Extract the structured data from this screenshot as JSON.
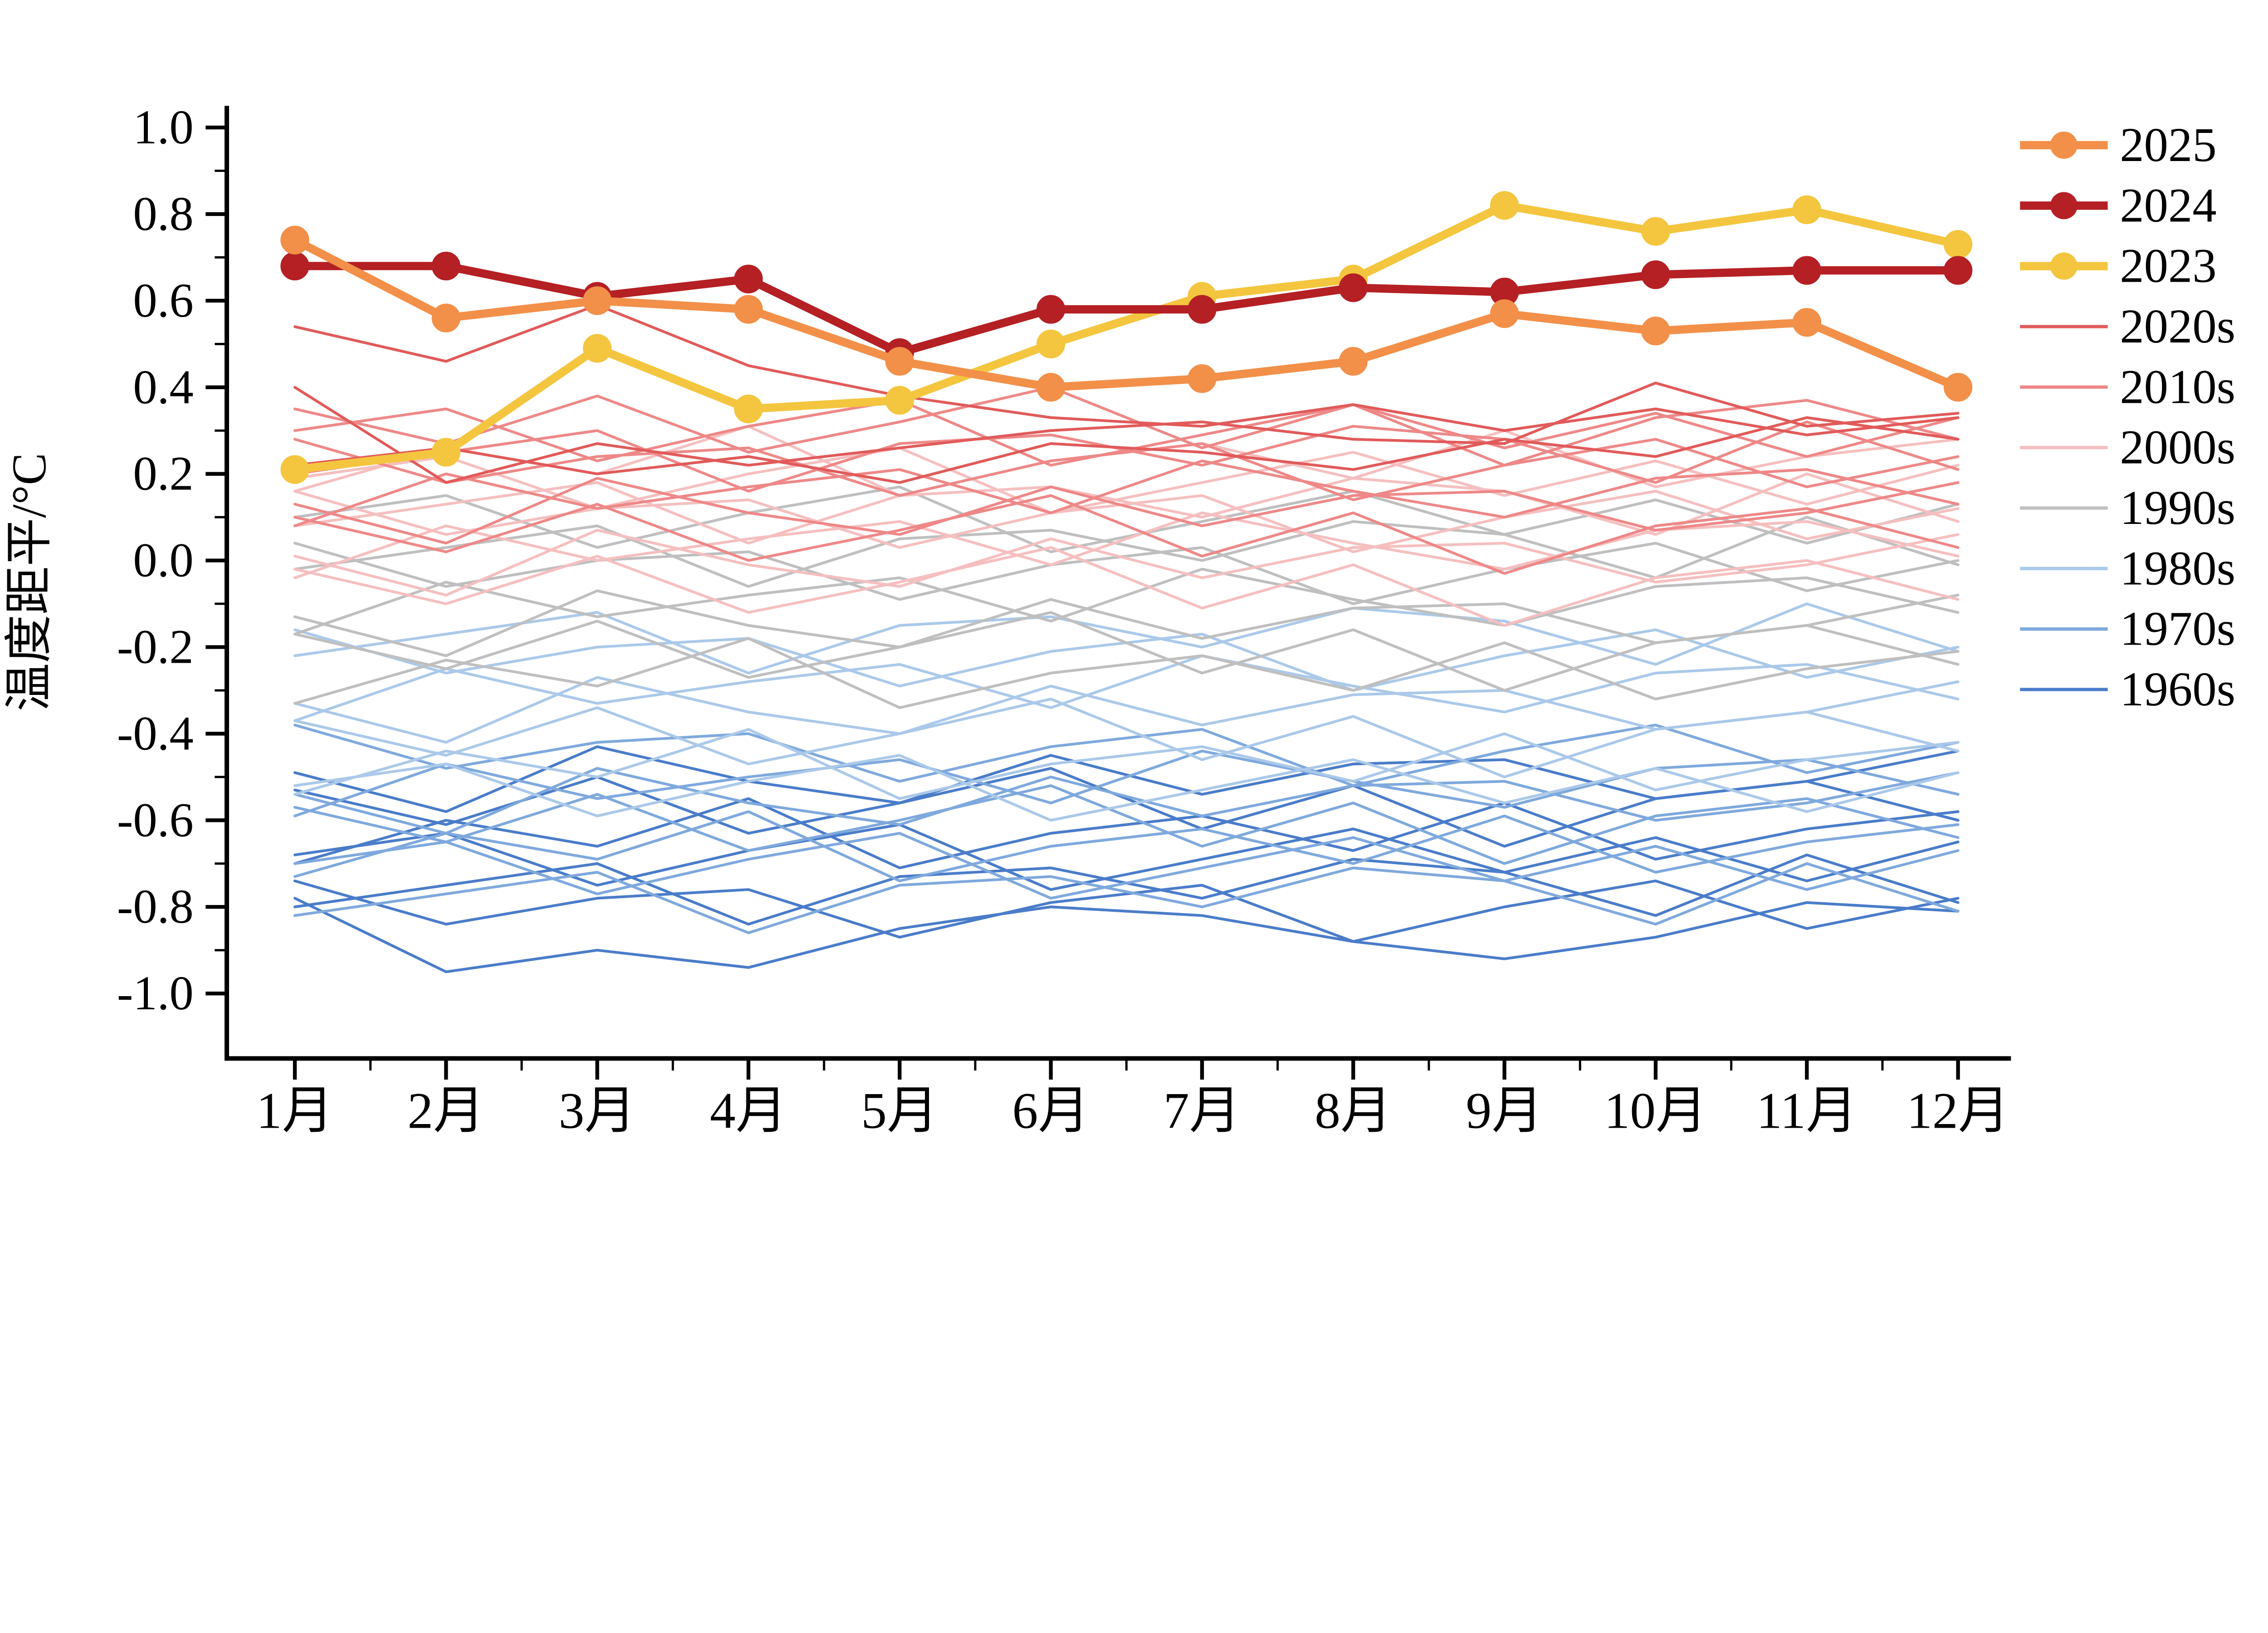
{
  "chart_data": {
    "type": "line",
    "title": "",
    "xlabel": "",
    "ylabel": "温度距平/°C",
    "categories": [
      "1月",
      "2月",
      "3月",
      "4月",
      "5月",
      "6月",
      "7月",
      "8月",
      "9月",
      "10月",
      "11月",
      "12月"
    ],
    "ylim": [
      -1.15,
      1.05
    ],
    "yticks": [
      -1.0,
      -0.8,
      -0.6,
      -0.4,
      -0.2,
      0.0,
      0.2,
      0.4,
      0.6,
      0.8,
      1.0
    ],
    "grid": false,
    "legend": {
      "position": "top-right",
      "items": [
        "2025",
        "2024",
        "2023",
        "2020s",
        "2010s",
        "2000s",
        "1990s",
        "1980s",
        "1970s",
        "1960s"
      ]
    },
    "highlight_series": [
      {
        "name": "2025",
        "color": "#F29049",
        "marker": true,
        "values": [
          0.74,
          0.56,
          0.6,
          0.58,
          0.46,
          0.4,
          0.42,
          0.46,
          0.57,
          0.53,
          0.55,
          0.4
        ]
      },
      {
        "name": "2024",
        "color": "#B42024",
        "marker": true,
        "values": [
          0.68,
          0.68,
          0.61,
          0.65,
          0.48,
          0.58,
          0.58,
          0.63,
          0.62,
          0.66,
          0.67,
          0.67
        ]
      },
      {
        "name": "2023",
        "color": "#F4C63F",
        "marker": true,
        "values": [
          0.21,
          0.25,
          0.49,
          0.35,
          0.37,
          0.5,
          0.61,
          0.65,
          0.82,
          0.76,
          0.81,
          0.73
        ]
      }
    ],
    "decade_series": [
      {
        "name": "2020s",
        "color": "#E15A5A",
        "lines": [
          [
            0.54,
            0.46,
            0.59,
            0.45,
            0.38,
            0.33,
            0.31,
            0.36,
            0.3,
            0.35,
            0.29,
            0.33
          ],
          [
            0.4,
            0.18,
            0.27,
            0.22,
            0.26,
            0.3,
            0.32,
            0.28,
            0.27,
            0.41,
            0.31,
            0.34
          ],
          [
            0.22,
            0.26,
            0.2,
            0.24,
            0.18,
            0.27,
            0.25,
            0.21,
            0.28,
            0.24,
            0.33,
            0.28
          ]
        ]
      },
      {
        "name": "2010s",
        "color": "#EE8888",
        "lines": [
          [
            0.35,
            0.27,
            0.38,
            0.25,
            0.32,
            0.4,
            0.26,
            0.36,
            0.22,
            0.33,
            0.37,
            0.28
          ],
          [
            0.3,
            0.35,
            0.23,
            0.31,
            0.37,
            0.22,
            0.29,
            0.36,
            0.26,
            0.34,
            0.24,
            0.33
          ],
          [
            0.2,
            0.25,
            0.3,
            0.16,
            0.27,
            0.29,
            0.22,
            0.31,
            0.28,
            0.18,
            0.32,
            0.21
          ],
          [
            0.28,
            0.18,
            0.24,
            0.26,
            0.15,
            0.23,
            0.27,
            0.14,
            0.22,
            0.28,
            0.17,
            0.24
          ],
          [
            0.08,
            0.2,
            0.12,
            0.17,
            0.21,
            0.11,
            0.23,
            0.16,
            0.1,
            0.19,
            0.21,
            0.13
          ],
          [
            0.13,
            0.04,
            0.19,
            0.11,
            0.06,
            0.17,
            0.08,
            0.15,
            0.16,
            0.07,
            0.11,
            0.18
          ],
          [
            0.1,
            0.02,
            0.13,
            0.0,
            0.07,
            0.15,
            0.01,
            0.11,
            -0.03,
            0.08,
            0.12,
            0.03
          ]
        ]
      },
      {
        "name": "2000s",
        "color": "#F5BFBF",
        "lines": [
          [
            0.16,
            0.26,
            0.2,
            0.31,
            0.15,
            0.23,
            0.27,
            0.19,
            0.3,
            0.17,
            0.24,
            0.28
          ],
          [
            0.19,
            0.24,
            0.12,
            0.2,
            0.26,
            0.11,
            0.18,
            0.25,
            0.15,
            0.23,
            0.13,
            0.22
          ],
          [
            0.08,
            0.13,
            0.18,
            0.04,
            0.15,
            0.17,
            0.1,
            0.19,
            0.16,
            0.06,
            0.2,
            0.09
          ],
          [
            0.16,
            0.06,
            0.12,
            0.14,
            0.03,
            0.11,
            0.15,
            0.02,
            0.1,
            0.16,
            0.05,
            0.12
          ],
          [
            -0.04,
            0.08,
            0.0,
            0.05,
            0.09,
            -0.01,
            0.11,
            0.04,
            -0.02,
            0.07,
            0.09,
            0.01
          ],
          [
            0.01,
            -0.08,
            0.07,
            -0.01,
            -0.06,
            0.05,
            -0.04,
            0.03,
            0.04,
            -0.05,
            -0.01,
            0.06
          ],
          [
            -0.02,
            -0.1,
            0.01,
            -0.12,
            -0.05,
            0.03,
            -0.11,
            -0.01,
            -0.15,
            -0.04,
            0.0,
            -0.09
          ]
        ]
      },
      {
        "name": "1990s",
        "color": "#BFBFBF",
        "lines": [
          [
            0.1,
            0.15,
            0.03,
            0.11,
            0.17,
            0.02,
            0.09,
            0.16,
            0.06,
            0.14,
            0.04,
            0.13
          ],
          [
            -0.02,
            0.03,
            0.08,
            -0.06,
            0.05,
            0.07,
            0.0,
            0.09,
            0.06,
            -0.04,
            0.1,
            -0.01
          ],
          [
            0.04,
            -0.06,
            0.0,
            0.02,
            -0.09,
            -0.01,
            0.03,
            -0.1,
            -0.02,
            0.04,
            -0.07,
            0.0
          ],
          [
            -0.17,
            -0.05,
            -0.13,
            -0.08,
            -0.04,
            -0.14,
            -0.02,
            -0.09,
            -0.15,
            -0.06,
            -0.04,
            -0.12
          ],
          [
            -0.13,
            -0.22,
            -0.07,
            -0.15,
            -0.2,
            -0.09,
            -0.18,
            -0.11,
            -0.1,
            -0.19,
            -0.15,
            -0.08
          ],
          [
            -0.17,
            -0.25,
            -0.14,
            -0.27,
            -0.2,
            -0.12,
            -0.26,
            -0.16,
            -0.3,
            -0.19,
            -0.15,
            -0.24
          ],
          [
            -0.33,
            -0.23,
            -0.29,
            -0.18,
            -0.34,
            -0.26,
            -0.22,
            -0.3,
            -0.19,
            -0.32,
            -0.25,
            -0.21
          ]
        ]
      },
      {
        "name": "1980s",
        "color": "#ABC9E9",
        "lines": [
          [
            -0.22,
            -0.17,
            -0.12,
            -0.26,
            -0.15,
            -0.13,
            -0.2,
            -0.11,
            -0.14,
            -0.24,
            -0.1,
            -0.21
          ],
          [
            -0.16,
            -0.26,
            -0.2,
            -0.18,
            -0.29,
            -0.21,
            -0.17,
            -0.3,
            -0.22,
            -0.16,
            -0.27,
            -0.2
          ],
          [
            -0.37,
            -0.25,
            -0.33,
            -0.28,
            -0.24,
            -0.34,
            -0.22,
            -0.29,
            -0.35,
            -0.26,
            -0.24,
            -0.32
          ],
          [
            -0.33,
            -0.42,
            -0.27,
            -0.35,
            -0.4,
            -0.29,
            -0.38,
            -0.31,
            -0.3,
            -0.39,
            -0.35,
            -0.28
          ],
          [
            -0.37,
            -0.45,
            -0.34,
            -0.47,
            -0.4,
            -0.32,
            -0.46,
            -0.36,
            -0.5,
            -0.39,
            -0.35,
            -0.44
          ],
          [
            -0.54,
            -0.44,
            -0.5,
            -0.39,
            -0.55,
            -0.47,
            -0.43,
            -0.51,
            -0.4,
            -0.53,
            -0.46,
            -0.42
          ],
          [
            -0.52,
            -0.47,
            -0.59,
            -0.51,
            -0.45,
            -0.6,
            -0.53,
            -0.46,
            -0.56,
            -0.48,
            -0.58,
            -0.49
          ]
        ]
      },
      {
        "name": "1970s",
        "color": "#7FA9DD",
        "lines": [
          [
            -0.38,
            -0.48,
            -0.42,
            -0.4,
            -0.51,
            -0.43,
            -0.39,
            -0.52,
            -0.44,
            -0.38,
            -0.49,
            -0.42
          ],
          [
            -0.59,
            -0.47,
            -0.55,
            -0.5,
            -0.46,
            -0.56,
            -0.44,
            -0.51,
            -0.57,
            -0.48,
            -0.46,
            -0.54
          ],
          [
            -0.54,
            -0.63,
            -0.48,
            -0.56,
            -0.61,
            -0.5,
            -0.59,
            -0.52,
            -0.51,
            -0.6,
            -0.56,
            -0.49
          ],
          [
            -0.57,
            -0.65,
            -0.54,
            -0.67,
            -0.6,
            -0.52,
            -0.66,
            -0.56,
            -0.7,
            -0.59,
            -0.55,
            -0.64
          ],
          [
            -0.73,
            -0.63,
            -0.69,
            -0.58,
            -0.74,
            -0.66,
            -0.62,
            -0.7,
            -0.59,
            -0.72,
            -0.65,
            -0.61
          ],
          [
            -0.7,
            -0.65,
            -0.77,
            -0.69,
            -0.63,
            -0.78,
            -0.71,
            -0.64,
            -0.74,
            -0.66,
            -0.76,
            -0.67
          ],
          [
            -0.82,
            -0.77,
            -0.72,
            -0.86,
            -0.75,
            -0.73,
            -0.8,
            -0.71,
            -0.74,
            -0.84,
            -0.7,
            -0.81
          ]
        ]
      },
      {
        "name": "1960s",
        "color": "#4A7CC9",
        "lines": [
          [
            -0.49,
            -0.58,
            -0.43,
            -0.51,
            -0.56,
            -0.45,
            -0.54,
            -0.47,
            -0.46,
            -0.55,
            -0.51,
            -0.44
          ],
          [
            -0.53,
            -0.61,
            -0.5,
            -0.63,
            -0.56,
            -0.48,
            -0.62,
            -0.52,
            -0.66,
            -0.55,
            -0.51,
            -0.6
          ],
          [
            -0.7,
            -0.6,
            -0.66,
            -0.55,
            -0.71,
            -0.63,
            -0.59,
            -0.67,
            -0.56,
            -0.69,
            -0.62,
            -0.58
          ],
          [
            -0.68,
            -0.63,
            -0.75,
            -0.67,
            -0.61,
            -0.76,
            -0.69,
            -0.62,
            -0.72,
            -0.64,
            -0.74,
            -0.65
          ],
          [
            -0.8,
            -0.75,
            -0.7,
            -0.84,
            -0.73,
            -0.71,
            -0.78,
            -0.69,
            -0.72,
            -0.82,
            -0.68,
            -0.79
          ],
          [
            -0.74,
            -0.84,
            -0.78,
            -0.76,
            -0.87,
            -0.79,
            -0.75,
            -0.88,
            -0.8,
            -0.74,
            -0.85,
            -0.78
          ],
          [
            -0.78,
            -0.95,
            -0.9,
            -0.94,
            -0.85,
            -0.8,
            -0.82,
            -0.88,
            -0.92,
            -0.87,
            -0.79,
            -0.81
          ]
        ]
      }
    ]
  }
}
